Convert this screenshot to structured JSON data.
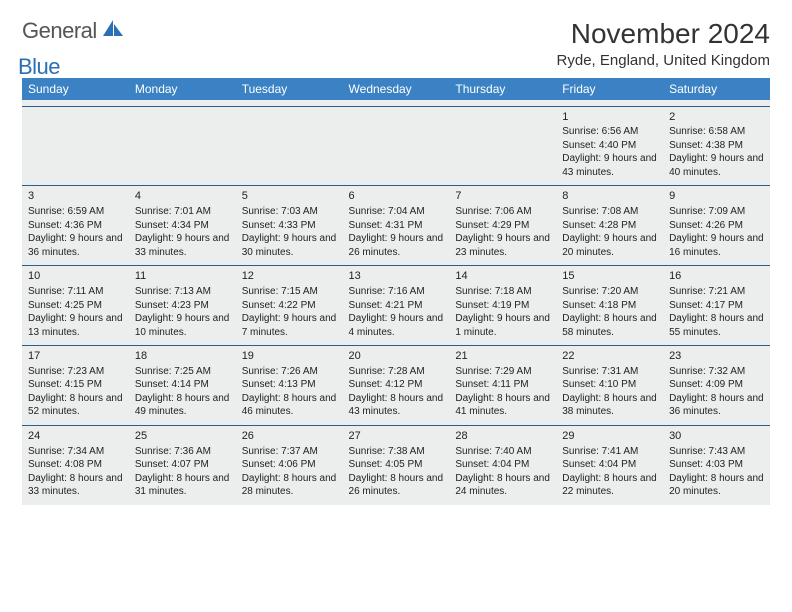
{
  "logo": {
    "general": "General",
    "blue": "Blue"
  },
  "title": "November 2024",
  "location": "Ryde, England, United Kingdom",
  "colors": {
    "header_bg": "#3b82c4",
    "row_divider": "#2b5f8a",
    "cell_bg": "#eceded",
    "logo_blue": "#2b6fb5"
  },
  "dayHeaders": [
    "Sunday",
    "Monday",
    "Tuesday",
    "Wednesday",
    "Thursday",
    "Friday",
    "Saturday"
  ],
  "weeks": [
    [
      null,
      null,
      null,
      null,
      null,
      {
        "n": "1",
        "sunrise": "Sunrise: 6:56 AM",
        "sunset": "Sunset: 4:40 PM",
        "daylight": "Daylight: 9 hours and 43 minutes."
      },
      {
        "n": "2",
        "sunrise": "Sunrise: 6:58 AM",
        "sunset": "Sunset: 4:38 PM",
        "daylight": "Daylight: 9 hours and 40 minutes."
      }
    ],
    [
      {
        "n": "3",
        "sunrise": "Sunrise: 6:59 AM",
        "sunset": "Sunset: 4:36 PM",
        "daylight": "Daylight: 9 hours and 36 minutes."
      },
      {
        "n": "4",
        "sunrise": "Sunrise: 7:01 AM",
        "sunset": "Sunset: 4:34 PM",
        "daylight": "Daylight: 9 hours and 33 minutes."
      },
      {
        "n": "5",
        "sunrise": "Sunrise: 7:03 AM",
        "sunset": "Sunset: 4:33 PM",
        "daylight": "Daylight: 9 hours and 30 minutes."
      },
      {
        "n": "6",
        "sunrise": "Sunrise: 7:04 AM",
        "sunset": "Sunset: 4:31 PM",
        "daylight": "Daylight: 9 hours and 26 minutes."
      },
      {
        "n": "7",
        "sunrise": "Sunrise: 7:06 AM",
        "sunset": "Sunset: 4:29 PM",
        "daylight": "Daylight: 9 hours and 23 minutes."
      },
      {
        "n": "8",
        "sunrise": "Sunrise: 7:08 AM",
        "sunset": "Sunset: 4:28 PM",
        "daylight": "Daylight: 9 hours and 20 minutes."
      },
      {
        "n": "9",
        "sunrise": "Sunrise: 7:09 AM",
        "sunset": "Sunset: 4:26 PM",
        "daylight": "Daylight: 9 hours and 16 minutes."
      }
    ],
    [
      {
        "n": "10",
        "sunrise": "Sunrise: 7:11 AM",
        "sunset": "Sunset: 4:25 PM",
        "daylight": "Daylight: 9 hours and 13 minutes."
      },
      {
        "n": "11",
        "sunrise": "Sunrise: 7:13 AM",
        "sunset": "Sunset: 4:23 PM",
        "daylight": "Daylight: 9 hours and 10 minutes."
      },
      {
        "n": "12",
        "sunrise": "Sunrise: 7:15 AM",
        "sunset": "Sunset: 4:22 PM",
        "daylight": "Daylight: 9 hours and 7 minutes."
      },
      {
        "n": "13",
        "sunrise": "Sunrise: 7:16 AM",
        "sunset": "Sunset: 4:21 PM",
        "daylight": "Daylight: 9 hours and 4 minutes."
      },
      {
        "n": "14",
        "sunrise": "Sunrise: 7:18 AM",
        "sunset": "Sunset: 4:19 PM",
        "daylight": "Daylight: 9 hours and 1 minute."
      },
      {
        "n": "15",
        "sunrise": "Sunrise: 7:20 AM",
        "sunset": "Sunset: 4:18 PM",
        "daylight": "Daylight: 8 hours and 58 minutes."
      },
      {
        "n": "16",
        "sunrise": "Sunrise: 7:21 AM",
        "sunset": "Sunset: 4:17 PM",
        "daylight": "Daylight: 8 hours and 55 minutes."
      }
    ],
    [
      {
        "n": "17",
        "sunrise": "Sunrise: 7:23 AM",
        "sunset": "Sunset: 4:15 PM",
        "daylight": "Daylight: 8 hours and 52 minutes."
      },
      {
        "n": "18",
        "sunrise": "Sunrise: 7:25 AM",
        "sunset": "Sunset: 4:14 PM",
        "daylight": "Daylight: 8 hours and 49 minutes."
      },
      {
        "n": "19",
        "sunrise": "Sunrise: 7:26 AM",
        "sunset": "Sunset: 4:13 PM",
        "daylight": "Daylight: 8 hours and 46 minutes."
      },
      {
        "n": "20",
        "sunrise": "Sunrise: 7:28 AM",
        "sunset": "Sunset: 4:12 PM",
        "daylight": "Daylight: 8 hours and 43 minutes."
      },
      {
        "n": "21",
        "sunrise": "Sunrise: 7:29 AM",
        "sunset": "Sunset: 4:11 PM",
        "daylight": "Daylight: 8 hours and 41 minutes."
      },
      {
        "n": "22",
        "sunrise": "Sunrise: 7:31 AM",
        "sunset": "Sunset: 4:10 PM",
        "daylight": "Daylight: 8 hours and 38 minutes."
      },
      {
        "n": "23",
        "sunrise": "Sunrise: 7:32 AM",
        "sunset": "Sunset: 4:09 PM",
        "daylight": "Daylight: 8 hours and 36 minutes."
      }
    ],
    [
      {
        "n": "24",
        "sunrise": "Sunrise: 7:34 AM",
        "sunset": "Sunset: 4:08 PM",
        "daylight": "Daylight: 8 hours and 33 minutes."
      },
      {
        "n": "25",
        "sunrise": "Sunrise: 7:36 AM",
        "sunset": "Sunset: 4:07 PM",
        "daylight": "Daylight: 8 hours and 31 minutes."
      },
      {
        "n": "26",
        "sunrise": "Sunrise: 7:37 AM",
        "sunset": "Sunset: 4:06 PM",
        "daylight": "Daylight: 8 hours and 28 minutes."
      },
      {
        "n": "27",
        "sunrise": "Sunrise: 7:38 AM",
        "sunset": "Sunset: 4:05 PM",
        "daylight": "Daylight: 8 hours and 26 minutes."
      },
      {
        "n": "28",
        "sunrise": "Sunrise: 7:40 AM",
        "sunset": "Sunset: 4:04 PM",
        "daylight": "Daylight: 8 hours and 24 minutes."
      },
      {
        "n": "29",
        "sunrise": "Sunrise: 7:41 AM",
        "sunset": "Sunset: 4:04 PM",
        "daylight": "Daylight: 8 hours and 22 minutes."
      },
      {
        "n": "30",
        "sunrise": "Sunrise: 7:43 AM",
        "sunset": "Sunset: 4:03 PM",
        "daylight": "Daylight: 8 hours and 20 minutes."
      }
    ]
  ]
}
